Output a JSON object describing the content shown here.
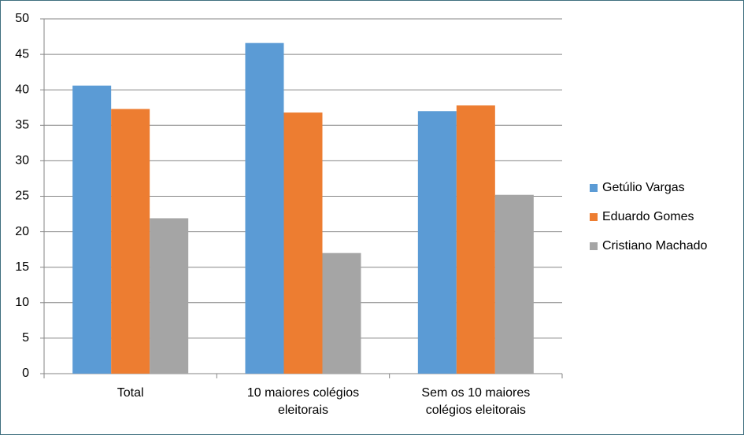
{
  "chart_data": {
    "type": "bar",
    "categories": [
      "Total",
      "10 maiores colégios eleitorais",
      "Sem os 10 maiores colégios eleitorais"
    ],
    "series": [
      {
        "name": "Getúlio Vargas",
        "color": "#5b9bd5",
        "values": [
          40.6,
          46.6,
          37.0
        ]
      },
      {
        "name": "Eduardo Gomes",
        "color": "#ed7d31",
        "values": [
          37.3,
          36.8,
          37.8
        ]
      },
      {
        "name": "Cristiano Machado",
        "color": "#a5a5a5",
        "values": [
          21.9,
          17.0,
          25.2
        ]
      }
    ],
    "ylim": [
      0,
      50
    ],
    "yticks": [
      0,
      5,
      10,
      15,
      20,
      25,
      30,
      35,
      40,
      45,
      50
    ],
    "grid": true,
    "legend": "right"
  }
}
